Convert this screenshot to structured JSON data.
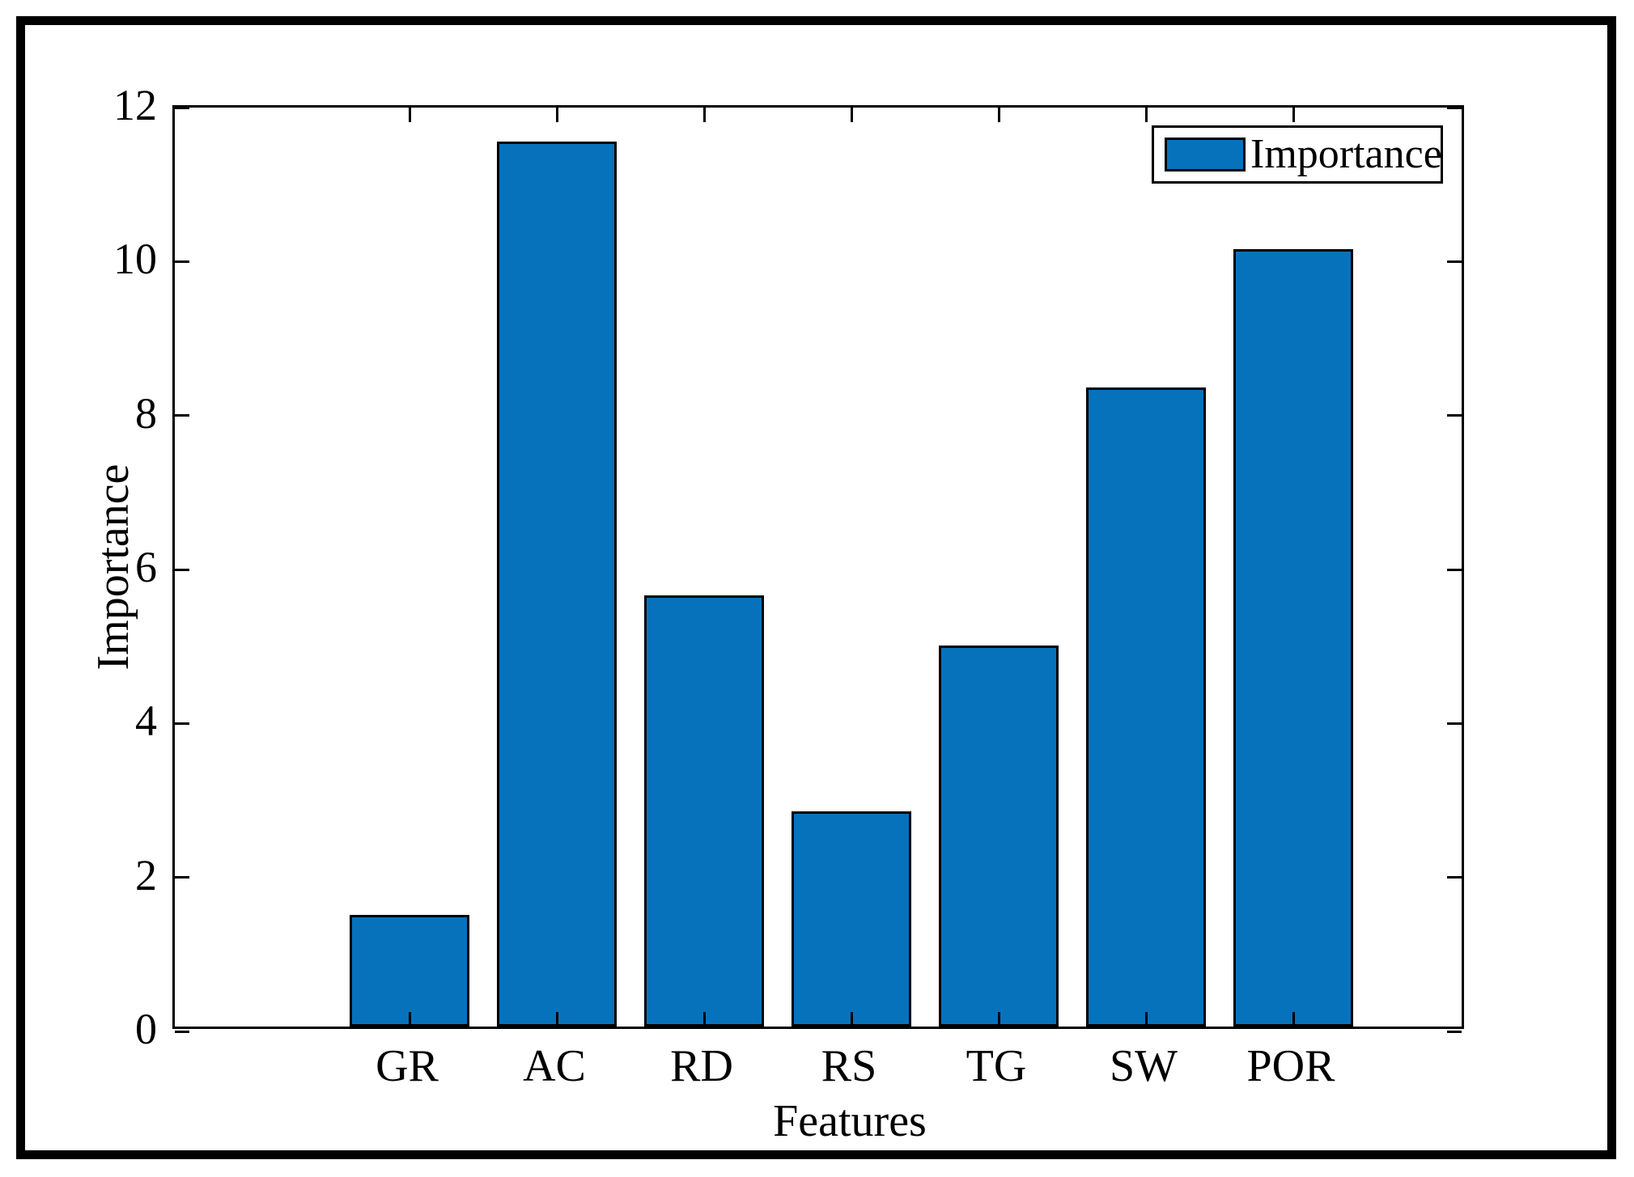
{
  "figure": {
    "background": "#ffffff",
    "frame_color": "#000000",
    "legend": {
      "label": "Importance",
      "swatch_color": "#0772BC",
      "position": "top-right"
    }
  },
  "chart_data": {
    "type": "bar",
    "categories": [
      "GR",
      "AC",
      "RD",
      "RS",
      "TG",
      "SW",
      "POR"
    ],
    "values": [
      1.45,
      11.5,
      5.6,
      2.8,
      4.95,
      8.3,
      10.1
    ],
    "series": [
      {
        "name": "Importance",
        "values": [
          1.45,
          11.5,
          5.6,
          2.8,
          4.95,
          8.3,
          10.1
        ]
      }
    ],
    "title": "",
    "xlabel": "Features",
    "ylabel": "Importance",
    "ylim": [
      0,
      12
    ],
    "yticks": [
      0,
      2,
      4,
      6,
      8,
      10,
      12
    ],
    "grid": false,
    "legend_entries": [
      "Importance"
    ],
    "legend_position": "top-right",
    "bar_color": "#0772BC",
    "bar_edge_color": "#000000",
    "axis_color": "#000000",
    "tick_direction": "in",
    "box": true
  }
}
